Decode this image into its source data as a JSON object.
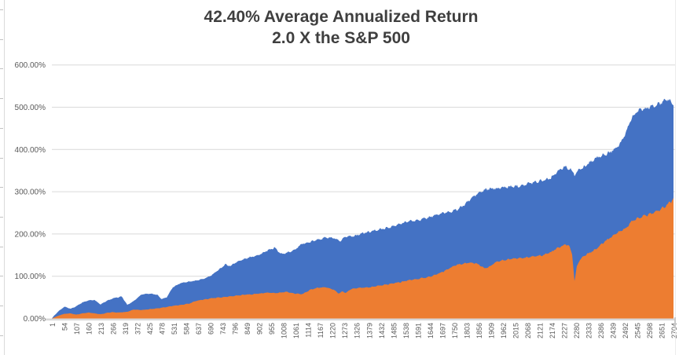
{
  "styles": {
    "background": "#FFFFFF",
    "title_color": "#3F3F3F",
    "axis_label_color": "#595959",
    "gridline_color": "#D9D9D9",
    "axis_line_color": "#D8D8D8",
    "series_blue": "#4472C4",
    "series_orange": "#ED7D31"
  },
  "chart_data": {
    "type": "area",
    "title": "42.40% Average Annualized Return",
    "subtitle": "2.0 X the S&P 500",
    "grid": "horizontal",
    "legend": "none",
    "x_axis": {
      "range": [
        1,
        2704
      ],
      "tick_step": 53,
      "tick_labels": [
        "1",
        "54",
        "107",
        "160",
        "213",
        "266",
        "319",
        "372",
        "425",
        "478",
        "531",
        "584",
        "637",
        "690",
        "743",
        "796",
        "849",
        "902",
        "955",
        "1008",
        "1061",
        "1114",
        "1167",
        "1220",
        "1273",
        "1326",
        "1379",
        "1432",
        "1485",
        "1538",
        "1591",
        "1644",
        "1697",
        "1750",
        "1803",
        "1856",
        "1909",
        "1962",
        "2015",
        "2068",
        "2121",
        "2174",
        "2227",
        "2280",
        "2333",
        "2386",
        "2439",
        "2492",
        "2545",
        "2598",
        "2651",
        "2704"
      ]
    },
    "y_axis": {
      "ylim_pct": [
        0,
        600
      ],
      "tick_interval_pct": 100,
      "tick_labels": [
        "0.00%",
        "100.00%",
        "200.00%",
        "300.00%",
        "400.00%",
        "500.00%",
        "600.00%"
      ]
    },
    "series": [
      {
        "name": "leveraged-2x-cumulative-return (blue area)",
        "color": "#4472C4",
        "points_day_pct": [
          [
            1,
            0
          ],
          [
            8,
            5
          ],
          [
            32,
            18
          ],
          [
            56,
            28
          ],
          [
            83,
            23
          ],
          [
            107,
            29
          ],
          [
            134,
            38
          ],
          [
            162,
            43
          ],
          [
            186,
            44
          ],
          [
            213,
            33
          ],
          [
            237,
            41
          ],
          [
            264,
            47
          ],
          [
            288,
            50
          ],
          [
            305,
            52
          ],
          [
            329,
            32
          ],
          [
            356,
            41
          ],
          [
            391,
            57
          ],
          [
            425,
            59
          ],
          [
            459,
            56
          ],
          [
            479,
            46
          ],
          [
            500,
            50
          ],
          [
            527,
            74
          ],
          [
            561,
            84
          ],
          [
            596,
            87
          ],
          [
            630,
            90
          ],
          [
            664,
            94
          ],
          [
            698,
            103
          ],
          [
            732,
            118
          ],
          [
            756,
            128
          ],
          [
            777,
            124
          ],
          [
            801,
            133
          ],
          [
            835,
            140
          ],
          [
            869,
            146
          ],
          [
            903,
            151
          ],
          [
            937,
            160
          ],
          [
            971,
            168
          ],
          [
            995,
            153
          ],
          [
            1023,
            155
          ],
          [
            1057,
            163
          ],
          [
            1091,
            177
          ],
          [
            1125,
            181
          ],
          [
            1159,
            187
          ],
          [
            1194,
            192
          ],
          [
            1228,
            190
          ],
          [
            1255,
            182
          ],
          [
            1279,
            194
          ],
          [
            1313,
            195
          ],
          [
            1347,
            201
          ],
          [
            1382,
            205
          ],
          [
            1416,
            210
          ],
          [
            1450,
            213
          ],
          [
            1484,
            218
          ],
          [
            1518,
            224
          ],
          [
            1546,
            230
          ],
          [
            1573,
            231
          ],
          [
            1604,
            234
          ],
          [
            1638,
            239
          ],
          [
            1672,
            245
          ],
          [
            1706,
            250
          ],
          [
            1741,
            254
          ],
          [
            1768,
            259
          ],
          [
            1792,
            268
          ],
          [
            1816,
            280
          ],
          [
            1840,
            291
          ],
          [
            1867,
            300
          ],
          [
            1894,
            306
          ],
          [
            1929,
            308
          ],
          [
            1963,
            310
          ],
          [
            1997,
            312
          ],
          [
            2031,
            314
          ],
          [
            2065,
            318
          ],
          [
            2099,
            323
          ],
          [
            2134,
            327
          ],
          [
            2168,
            332
          ],
          [
            2192,
            344
          ],
          [
            2216,
            354
          ],
          [
            2236,
            360
          ],
          [
            2257,
            352
          ],
          [
            2274,
            341
          ],
          [
            2291,
            351
          ],
          [
            2311,
            357
          ],
          [
            2339,
            369
          ],
          [
            2363,
            378
          ],
          [
            2383,
            384
          ],
          [
            2407,
            387
          ],
          [
            2431,
            395
          ],
          [
            2455,
            405
          ],
          [
            2475,
            415
          ],
          [
            2496,
            438
          ],
          [
            2516,
            468
          ],
          [
            2537,
            486
          ],
          [
            2561,
            494
          ],
          [
            2585,
            497
          ],
          [
            2612,
            502
          ],
          [
            2639,
            507
          ],
          [
            2663,
            514
          ],
          [
            2680,
            519
          ],
          [
            2694,
            512
          ],
          [
            2704,
            507
          ]
        ]
      },
      {
        "name": "sp500-cumulative-return (orange area)",
        "color": "#ED7D31",
        "points_day_pct": [
          [
            1,
            0
          ],
          [
            8,
            2
          ],
          [
            32,
            7
          ],
          [
            56,
            11
          ],
          [
            83,
            12
          ],
          [
            107,
            9
          ],
          [
            134,
            12
          ],
          [
            162,
            14
          ],
          [
            186,
            12
          ],
          [
            213,
            10
          ],
          [
            237,
            13
          ],
          [
            264,
            15
          ],
          [
            288,
            14
          ],
          [
            329,
            16
          ],
          [
            356,
            21
          ],
          [
            391,
            20
          ],
          [
            425,
            22
          ],
          [
            459,
            24
          ],
          [
            500,
            27
          ],
          [
            527,
            30
          ],
          [
            561,
            32
          ],
          [
            596,
            35
          ],
          [
            630,
            42
          ],
          [
            664,
            45
          ],
          [
            698,
            48
          ],
          [
            732,
            50
          ],
          [
            777,
            52
          ],
          [
            801,
            54
          ],
          [
            835,
            56
          ],
          [
            869,
            57
          ],
          [
            903,
            59
          ],
          [
            937,
            61
          ],
          [
            971,
            60
          ],
          [
            1023,
            63
          ],
          [
            1057,
            59
          ],
          [
            1091,
            58
          ],
          [
            1125,
            68
          ],
          [
            1159,
            73
          ],
          [
            1194,
            74
          ],
          [
            1228,
            68
          ],
          [
            1248,
            59
          ],
          [
            1266,
            64
          ],
          [
            1279,
            60
          ],
          [
            1296,
            68
          ],
          [
            1313,
            71
          ],
          [
            1347,
            73
          ],
          [
            1382,
            74
          ],
          [
            1416,
            77
          ],
          [
            1450,
            80
          ],
          [
            1484,
            83
          ],
          [
            1518,
            86
          ],
          [
            1546,
            90
          ],
          [
            1573,
            92
          ],
          [
            1604,
            95
          ],
          [
            1638,
            98
          ],
          [
            1672,
            104
          ],
          [
            1706,
            112
          ],
          [
            1734,
            120
          ],
          [
            1762,
            127
          ],
          [
            1792,
            130
          ],
          [
            1816,
            132
          ],
          [
            1840,
            131
          ],
          [
            1860,
            127
          ],
          [
            1880,
            119
          ],
          [
            1901,
            121
          ],
          [
            1929,
            133
          ],
          [
            1963,
            138
          ],
          [
            1997,
            141
          ],
          [
            2031,
            143
          ],
          [
            2065,
            144
          ],
          [
            2099,
            147
          ],
          [
            2134,
            150
          ],
          [
            2168,
            156
          ],
          [
            2192,
            164
          ],
          [
            2216,
            171
          ],
          [
            2236,
            175
          ],
          [
            2250,
            172
          ],
          [
            2264,
            150
          ],
          [
            2274,
            86
          ],
          [
            2284,
            125
          ],
          [
            2298,
            140
          ],
          [
            2319,
            150
          ],
          [
            2339,
            155
          ],
          [
            2363,
            163
          ],
          [
            2383,
            172
          ],
          [
            2407,
            183
          ],
          [
            2431,
            192
          ],
          [
            2455,
            201
          ],
          [
            2475,
            208
          ],
          [
            2496,
            213
          ],
          [
            2516,
            226
          ],
          [
            2537,
            234
          ],
          [
            2561,
            240
          ],
          [
            2585,
            244
          ],
          [
            2612,
            249
          ],
          [
            2639,
            256
          ],
          [
            2663,
            263
          ],
          [
            2680,
            271
          ],
          [
            2694,
            277
          ],
          [
            2704,
            283
          ]
        ]
      }
    ]
  }
}
